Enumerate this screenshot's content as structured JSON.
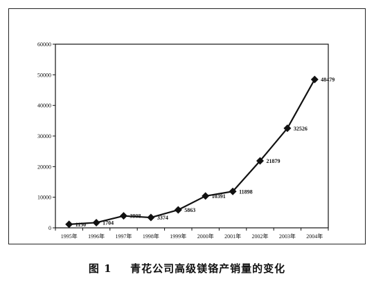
{
  "chart_data": {
    "type": "line",
    "title": "",
    "xlabel": "",
    "ylabel": "",
    "categories": [
      "1995年",
      "1996年",
      "1997年",
      "1998年",
      "1999年",
      "2000年",
      "2001年",
      "2002年",
      "2003年",
      "2004年"
    ],
    "series": [
      {
        "values": [
          1150,
          1704,
          3908,
          3374,
          5863,
          10391,
          11898,
          21879,
          32526,
          48479
        ],
        "labels": [
          "1150",
          "1704",
          "3908",
          "3374",
          "5863",
          "10391",
          "11898",
          "21879",
          "32526",
          "48479"
        ],
        "color": "#111111",
        "marker": "diamond"
      }
    ],
    "ylim": [
      0,
      60000
    ],
    "yticks": [
      "0",
      "10000",
      "20000",
      "30000",
      "40000",
      "50000",
      "60000"
    ],
    "grid": false,
    "legend": "none"
  },
  "caption": {
    "number": "图 1",
    "text": "青花公司高级镁铬产销量的变化"
  }
}
